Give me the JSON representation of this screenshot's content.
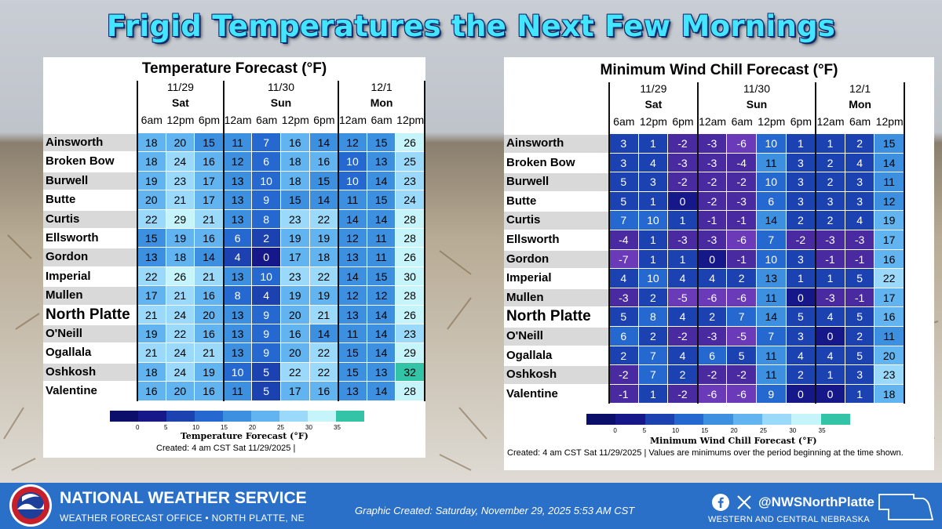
{
  "page_title": "Frigid Temperatures the Next Few Mornings",
  "colors": {
    "scale_stops": [
      {
        "max": 0,
        "color": "#16188a"
      },
      {
        "max": 5,
        "color": "#1b42b0"
      },
      {
        "max": 10,
        "color": "#2568cf"
      },
      {
        "max": 15,
        "color": "#3d8fe0"
      },
      {
        "max": 20,
        "color": "#62b4f0"
      },
      {
        "max": 25,
        "color": "#9ad9fa"
      },
      {
        "max": 30,
        "color": "#c5f4fb"
      },
      {
        "max": 35,
        "color": "#33c4a8"
      }
    ],
    "below_zero": "#4a2aa0",
    "below_minus5": "#6a3ab8",
    "footer_bg": "#2a6fc8"
  },
  "temperature_panel": {
    "title": "Temperature Forecast (°F)",
    "days": [
      {
        "date": "11/29",
        "day": "Sat",
        "times": [
          "6am",
          "12pm",
          "6pm"
        ]
      },
      {
        "date": "11/30",
        "day": "Sun",
        "times": [
          "12am",
          "6am",
          "12pm",
          "6pm"
        ]
      },
      {
        "date": "12/1",
        "day": "Mon",
        "times": [
          "12am",
          "6am",
          "12pm"
        ]
      }
    ],
    "rows": [
      {
        "name": "Ainsworth",
        "values": [
          18,
          20,
          15,
          11,
          7,
          16,
          14,
          12,
          15,
          26
        ]
      },
      {
        "name": "Broken Bow",
        "values": [
          18,
          24,
          16,
          12,
          6,
          18,
          16,
          10,
          13,
          25
        ]
      },
      {
        "name": "Burwell",
        "values": [
          19,
          23,
          17,
          13,
          10,
          18,
          15,
          10,
          14,
          23
        ]
      },
      {
        "name": "Butte",
        "values": [
          20,
          21,
          17,
          13,
          9,
          15,
          14,
          11,
          15,
          24
        ]
      },
      {
        "name": "Curtis",
        "values": [
          22,
          29,
          21,
          13,
          8,
          23,
          22,
          14,
          14,
          28
        ]
      },
      {
        "name": "Ellsworth",
        "values": [
          15,
          19,
          16,
          6,
          2,
          19,
          19,
          12,
          11,
          28
        ]
      },
      {
        "name": "Gordon",
        "values": [
          13,
          18,
          14,
          4,
          0,
          17,
          18,
          13,
          11,
          26
        ]
      },
      {
        "name": "Imperial",
        "values": [
          22,
          26,
          21,
          13,
          10,
          23,
          22,
          14,
          15,
          30
        ]
      },
      {
        "name": "Mullen",
        "values": [
          17,
          21,
          16,
          8,
          4,
          19,
          19,
          12,
          12,
          28
        ]
      },
      {
        "name": "North Platte",
        "values": [
          21,
          24,
          20,
          13,
          9,
          20,
          21,
          13,
          14,
          26
        ],
        "highlight": true
      },
      {
        "name": "O'Neill",
        "values": [
          19,
          22,
          16,
          13,
          9,
          16,
          14,
          11,
          14,
          23
        ]
      },
      {
        "name": "Ogallala",
        "values": [
          21,
          24,
          21,
          13,
          9,
          20,
          22,
          15,
          14,
          29
        ]
      },
      {
        "name": "Oshkosh",
        "values": [
          18,
          24,
          19,
          10,
          5,
          22,
          22,
          15,
          13,
          32
        ]
      },
      {
        "name": "Valentine",
        "values": [
          16,
          20,
          16,
          11,
          5,
          17,
          16,
          13,
          14,
          28
        ]
      }
    ],
    "legend": {
      "ticks": [
        "0",
        "5",
        "10",
        "15",
        "20",
        "25",
        "30",
        "35"
      ],
      "title": "Temperature Forecast (°F)"
    },
    "created": "Created: 4 am CST Sat 11/29/2025  |"
  },
  "windchill_panel": {
    "title": "Minimum Wind Chill Forecast (°F)",
    "days": [
      {
        "date": "11/29",
        "day": "Sat",
        "times": [
          "6am",
          "12pm",
          "6pm"
        ]
      },
      {
        "date": "11/30",
        "day": "Sun",
        "times": [
          "12am",
          "6am",
          "12pm",
          "6pm"
        ]
      },
      {
        "date": "12/1",
        "day": "Mon",
        "times": [
          "12am",
          "6am",
          "12pm"
        ]
      }
    ],
    "rows": [
      {
        "name": "Ainsworth",
        "values": [
          3,
          1,
          -2,
          -3,
          -6,
          10,
          1,
          1,
          2,
          15
        ]
      },
      {
        "name": "Broken Bow",
        "values": [
          3,
          4,
          -3,
          -3,
          -4,
          11,
          3,
          2,
          4,
          14
        ]
      },
      {
        "name": "Burwell",
        "values": [
          5,
          3,
          -2,
          -2,
          -2,
          10,
          3,
          2,
          3,
          11
        ]
      },
      {
        "name": "Butte",
        "values": [
          5,
          1,
          0,
          -2,
          -3,
          6,
          3,
          3,
          3,
          12
        ]
      },
      {
        "name": "Curtis",
        "values": [
          7,
          10,
          1,
          -1,
          -1,
          14,
          2,
          2,
          4,
          19
        ]
      },
      {
        "name": "Ellsworth",
        "values": [
          -4,
          1,
          -3,
          -3,
          -6,
          7,
          -2,
          -3,
          -3,
          17
        ]
      },
      {
        "name": "Gordon",
        "values": [
          -7,
          1,
          1,
          0,
          -1,
          10,
          3,
          -1,
          -1,
          16
        ]
      },
      {
        "name": "Imperial",
        "values": [
          4,
          10,
          4,
          4,
          2,
          13,
          1,
          1,
          5,
          22
        ]
      },
      {
        "name": "Mullen",
        "values": [
          -3,
          2,
          -5,
          -6,
          -6,
          11,
          0,
          -3,
          -1,
          17
        ]
      },
      {
        "name": "North Platte",
        "values": [
          5,
          8,
          4,
          2,
          7,
          14,
          5,
          4,
          5,
          16
        ],
        "highlight": true
      },
      {
        "name": "O'Neill",
        "values": [
          6,
          2,
          -2,
          -3,
          -5,
          7,
          3,
          0,
          2,
          11
        ]
      },
      {
        "name": "Ogallala",
        "values": [
          2,
          7,
          4,
          6,
          5,
          11,
          4,
          4,
          5,
          20
        ]
      },
      {
        "name": "Oshkosh",
        "values": [
          -2,
          7,
          2,
          -2,
          -2,
          11,
          2,
          1,
          3,
          23
        ]
      },
      {
        "name": "Valentine",
        "values": [
          -1,
          1,
          -2,
          -6,
          -6,
          9,
          0,
          0,
          1,
          18
        ]
      }
    ],
    "legend": {
      "ticks": [
        "0",
        "5",
        "10",
        "15",
        "20",
        "25",
        "30",
        "35"
      ],
      "title": "Minimum Wind Chill Forecast (°F)"
    },
    "created": "Created: 4 am CST Sat 11/29/2025  |  Values are minimums over the period beginning at the time shown."
  },
  "footer": {
    "org_name": "NATIONAL WEATHER SERVICE",
    "office": "WEATHER FORECAST OFFICE • NORTH PLATTE, NE",
    "graphic_created": "Graphic Created:  Saturday, November 29, 2025  5:53 AM CST",
    "handle": "@NWSNorthPlatte",
    "region": "WESTERN AND CENTRAL NEBRASKA",
    "social_icons": [
      "facebook-icon",
      "x-icon"
    ]
  }
}
